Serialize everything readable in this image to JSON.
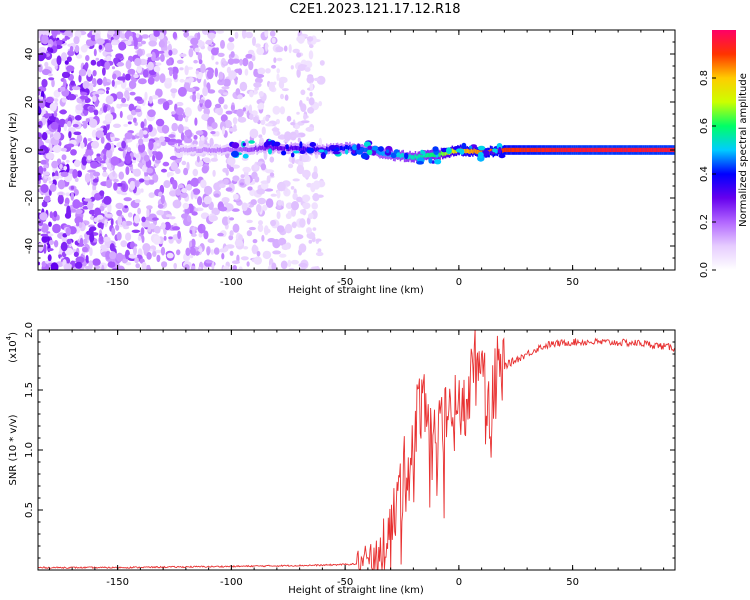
{
  "title": "C2E1.2023.121.17.12.R18",
  "chart_data": [
    {
      "type": "heatmap",
      "xlabel": "Height of straight line (km)",
      "ylabel": "Frequency (Hz)",
      "xlim": [
        -185,
        95
      ],
      "ylim": [
        -50,
        50
      ],
      "xticks": [
        -150,
        -100,
        -50,
        0,
        50
      ],
      "yticks": [
        -40,
        -20,
        0,
        20,
        40
      ],
      "colorbar": {
        "label": "Normalized spectral amplitude",
        "range": [
          0,
          1
        ],
        "ticks": [
          "0.0",
          "0.2",
          "0.4",
          "0.6",
          "0.8"
        ],
        "colormap": [
          "#ffffff",
          "#e6ccff",
          "#b266ff",
          "#6600ee",
          "#0000ff",
          "#00ccff",
          "#00ff66",
          "#ccff00",
          "#ffcc00",
          "#ff3300",
          "#ff0066"
        ]
      },
      "ridge": {
        "description_values": "dominant frequency near 0 Hz",
        "x": [
          -120,
          -100,
          -80,
          -60,
          -50,
          -40,
          -30,
          -20,
          -10,
          0,
          10,
          20,
          50,
          95
        ],
        "freq": [
          0,
          0,
          1,
          0,
          1,
          0,
          -2,
          -3,
          -2,
          0,
          -1,
          0,
          0,
          0
        ],
        "amplitude": [
          0.15,
          0.2,
          0.3,
          0.35,
          0.4,
          0.45,
          0.5,
          0.55,
          0.6,
          0.8,
          0.85,
          0.9,
          0.95,
          0.95
        ]
      }
    },
    {
      "type": "line",
      "xlabel": "Height of straight line (km)",
      "ylabel": "SNR (10 * v/v)",
      "yscale_label": "(x10",
      "yscale_exp": "4",
      "xlim": [
        -185,
        95
      ],
      "ylim": [
        0,
        2.0
      ],
      "xticks": [
        -150,
        -100,
        -50,
        0,
        50
      ],
      "yticks": [
        "0.5",
        "1.0",
        "1.5",
        "2.0"
      ],
      "color": "#e83030",
      "series": [
        {
          "x": [
            -185,
            -150,
            -100,
            -60,
            -45,
            -40,
            -35,
            -30,
            -25,
            -20,
            -17,
            -15,
            -12,
            -10,
            -5,
            0,
            5,
            10,
            12,
            15,
            20,
            25,
            30,
            35,
            40,
            50,
            60,
            80,
            95
          ],
          "values": [
            0.02,
            0.02,
            0.03,
            0.04,
            0.05,
            0.08,
            0.2,
            0.35,
            0.7,
            1.05,
            1.4,
            1.5,
            1.15,
            1.0,
            1.25,
            1.3,
            1.55,
            1.85,
            1.3,
            1.55,
            1.7,
            1.75,
            1.8,
            1.85,
            1.88,
            1.9,
            1.9,
            1.89,
            1.85
          ]
        }
      ]
    }
  ]
}
